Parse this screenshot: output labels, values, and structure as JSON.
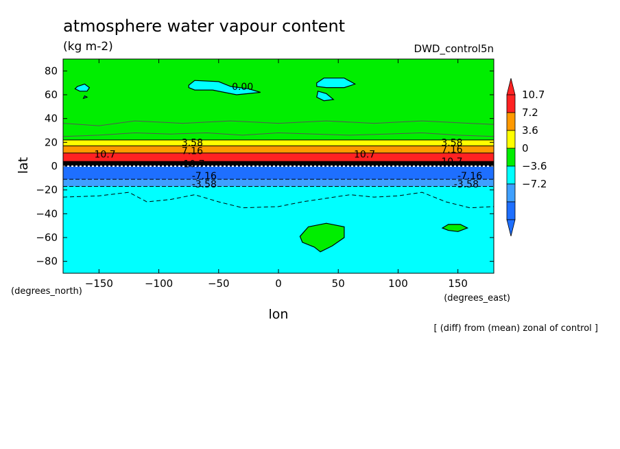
{
  "chart_data": {
    "type": "heatmap",
    "title": "atmosphere water vapour content",
    "units": "(kg m-2)",
    "experiment": "DWD_control5n",
    "xlabel": "lon",
    "ylabel": "lat",
    "x_units": "(degrees_east)",
    "y_units": "(degrees_north)",
    "note": "[ (diff) from (mean) zonal of control ]",
    "xlim": [
      -180,
      180
    ],
    "ylim": [
      -90,
      90
    ],
    "x_ticks": [
      -150,
      -100,
      -50,
      0,
      50,
      100,
      150
    ],
    "y_ticks": [
      -80,
      -60,
      -40,
      -20,
      0,
      20,
      40,
      60,
      80
    ],
    "colorbar": {
      "labels": [
        "10.7",
        "7.2",
        "3.6",
        "0",
        "-3.6",
        "-7.2"
      ],
      "levels": [
        -10.7,
        -7.2,
        -3.6,
        0,
        3.6,
        7.2,
        10.7
      ],
      "colors": [
        "#1e6fff",
        "#3fa0ff",
        "#00ffff",
        "#00ee00",
        "#ffff00",
        "#ff9900",
        "#ff2222"
      ],
      "extend_colors": {
        "low": "#1e6fff",
        "high": "#ff2222"
      }
    },
    "bands": [
      {
        "lat_min": -90,
        "lat_max": -17,
        "color": "#00ffff"
      },
      {
        "lat_min": -17,
        "lat_max": -11,
        "color": "#3fa0ff"
      },
      {
        "lat_min": -11,
        "lat_max": 0,
        "color": "#1e6fff"
      },
      {
        "lat_min": 0,
        "lat_max": 4,
        "color": "#000000"
      },
      {
        "lat_min": 4,
        "lat_max": 11,
        "color": "#ff2222"
      },
      {
        "lat_min": 11,
        "lat_max": 17,
        "color": "#ff9900"
      },
      {
        "lat_min": 17,
        "lat_max": 22,
        "color": "#ffff00"
      },
      {
        "lat_min": 22,
        "lat_max": 90,
        "color": "#00ee00"
      }
    ],
    "regions": [
      {
        "fill": "#00ffff",
        "points": [
          [
            -168,
            67
          ],
          [
            -162,
            69
          ],
          [
            -158,
            66
          ],
          [
            -160,
            63
          ],
          [
            -166,
            63
          ],
          [
            -170,
            65
          ]
        ]
      },
      {
        "fill": "#00ffff",
        "points": [
          [
            -162,
            59
          ],
          [
            -160,
            58
          ],
          [
            -163,
            57
          ]
        ]
      },
      {
        "fill": "#00ffff",
        "points": [
          [
            -75,
            68
          ],
          [
            -70,
            72
          ],
          [
            -50,
            71
          ],
          [
            -40,
            67
          ],
          [
            -25,
            65
          ],
          [
            -15,
            62
          ],
          [
            -35,
            60
          ],
          [
            -55,
            64
          ],
          [
            -70,
            64
          ],
          [
            -75,
            66
          ]
        ]
      },
      {
        "fill": "#00ffff",
        "points": [
          [
            32,
            70
          ],
          [
            38,
            74
          ],
          [
            55,
            74
          ],
          [
            64,
            69
          ],
          [
            55,
            66
          ],
          [
            40,
            66
          ],
          [
            32,
            67
          ]
        ]
      },
      {
        "fill": "#00ffff",
        "points": [
          [
            33,
            63
          ],
          [
            40,
            61
          ],
          [
            46,
            56
          ],
          [
            38,
            55
          ],
          [
            32,
            58
          ]
        ]
      },
      {
        "fill": "#00ee00",
        "points": [
          [
            18,
            -59
          ],
          [
            25,
            -51
          ],
          [
            40,
            -48
          ],
          [
            55,
            -51
          ],
          [
            55,
            -60
          ],
          [
            45,
            -67
          ],
          [
            35,
            -72
          ],
          [
            30,
            -68
          ],
          [
            20,
            -64
          ]
        ]
      },
      {
        "fill": "#00ee00",
        "points": [
          [
            137,
            -52
          ],
          [
            142,
            -49
          ],
          [
            152,
            -49
          ],
          [
            158,
            -52
          ],
          [
            150,
            -55
          ],
          [
            142,
            -54
          ]
        ]
      }
    ],
    "contours": [
      {
        "style": "solid",
        "points": [
          [
            -180,
            36
          ],
          [
            -150,
            34
          ],
          [
            -120,
            38
          ],
          [
            -100,
            37
          ],
          [
            -80,
            36
          ],
          [
            -60,
            37
          ],
          [
            -40,
            38
          ],
          [
            -20,
            37
          ],
          [
            0,
            36
          ],
          [
            20,
            37
          ],
          [
            40,
            38
          ],
          [
            60,
            37
          ],
          [
            80,
            36
          ],
          [
            100,
            37
          ],
          [
            120,
            38
          ],
          [
            140,
            37
          ],
          [
            160,
            36
          ],
          [
            180,
            35
          ]
        ]
      },
      {
        "style": "solid",
        "points": [
          [
            -180,
            25
          ],
          [
            -150,
            26
          ],
          [
            -120,
            28
          ],
          [
            -90,
            27
          ],
          [
            -60,
            28
          ],
          [
            -30,
            26
          ],
          [
            0,
            28
          ],
          [
            30,
            27
          ],
          [
            60,
            26
          ],
          [
            90,
            27
          ],
          [
            120,
            28
          ],
          [
            150,
            26
          ],
          [
            180,
            25
          ]
        ]
      },
      {
        "style": "dashed",
        "points": [
          [
            -180,
            -26
          ],
          [
            -150,
            -25
          ],
          [
            -125,
            -22
          ],
          [
            -110,
            -30
          ],
          [
            -90,
            -28
          ],
          [
            -70,
            -24
          ],
          [
            -50,
            -30
          ],
          [
            -30,
            -35
          ],
          [
            0,
            -34
          ],
          [
            20,
            -30
          ],
          [
            40,
            -27
          ],
          [
            60,
            -24
          ],
          [
            80,
            -26
          ],
          [
            100,
            -25
          ],
          [
            120,
            -22
          ],
          [
            140,
            -30
          ],
          [
            160,
            -35
          ],
          [
            180,
            -34
          ]
        ]
      }
    ],
    "contour_labels": [
      {
        "text": "0.00",
        "lon": -30,
        "lat": 67
      },
      {
        "text": "3.58",
        "lon": -72,
        "lat": 20
      },
      {
        "text": "7.16",
        "lon": -72,
        "lat": 13
      },
      {
        "text": "10.7",
        "lon": -145,
        "lat": 10
      },
      {
        "text": "10.7",
        "lon": 72,
        "lat": 10
      },
      {
        "text": "3.58",
        "lon": 145,
        "lat": 20
      },
      {
        "text": "7.16",
        "lon": 145,
        "lat": 14
      },
      {
        "text": "10.7",
        "lon": 145,
        "lat": 4
      },
      {
        "text": "-10.7",
        "lon": -72,
        "lat": 2
      },
      {
        "text": "-7.16",
        "lon": -62,
        "lat": -8
      },
      {
        "text": "-3.58",
        "lon": -62,
        "lat": -15
      },
      {
        "text": "-7.16",
        "lon": 160,
        "lat": -8
      },
      {
        "text": "-3.58",
        "lon": 157,
        "lat": -15
      }
    ]
  }
}
